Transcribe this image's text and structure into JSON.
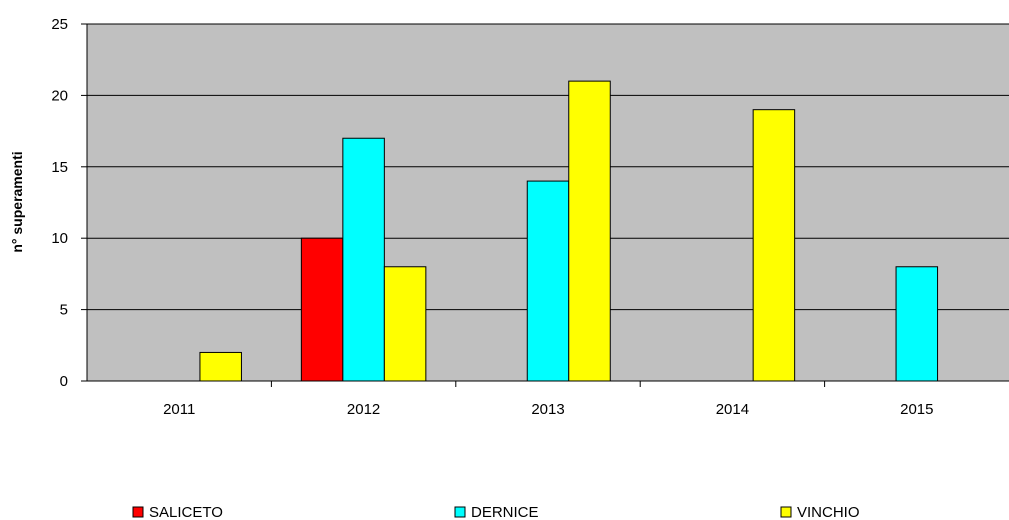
{
  "chart_data": {
    "type": "bar",
    "ylabel": "n° superamenti",
    "xlabel": "",
    "categories": [
      "2011",
      "2012",
      "2013",
      "2014",
      "2015"
    ],
    "ylim": [
      0,
      25
    ],
    "yticks": [
      0,
      5,
      10,
      15,
      20,
      25
    ],
    "grid": true,
    "legend_position": "bottom",
    "plot_background": "#c0c0c0",
    "series": [
      {
        "name": "SALICETO",
        "color": "#ff0000",
        "values": [
          0,
          10,
          0,
          0,
          0
        ]
      },
      {
        "name": "DERNICE",
        "color": "#00ffff",
        "values": [
          0,
          17,
          14,
          0,
          8
        ]
      },
      {
        "name": "VINCHIO",
        "color": "#ffff00",
        "values": [
          2,
          8,
          21,
          19,
          0
        ]
      }
    ]
  }
}
